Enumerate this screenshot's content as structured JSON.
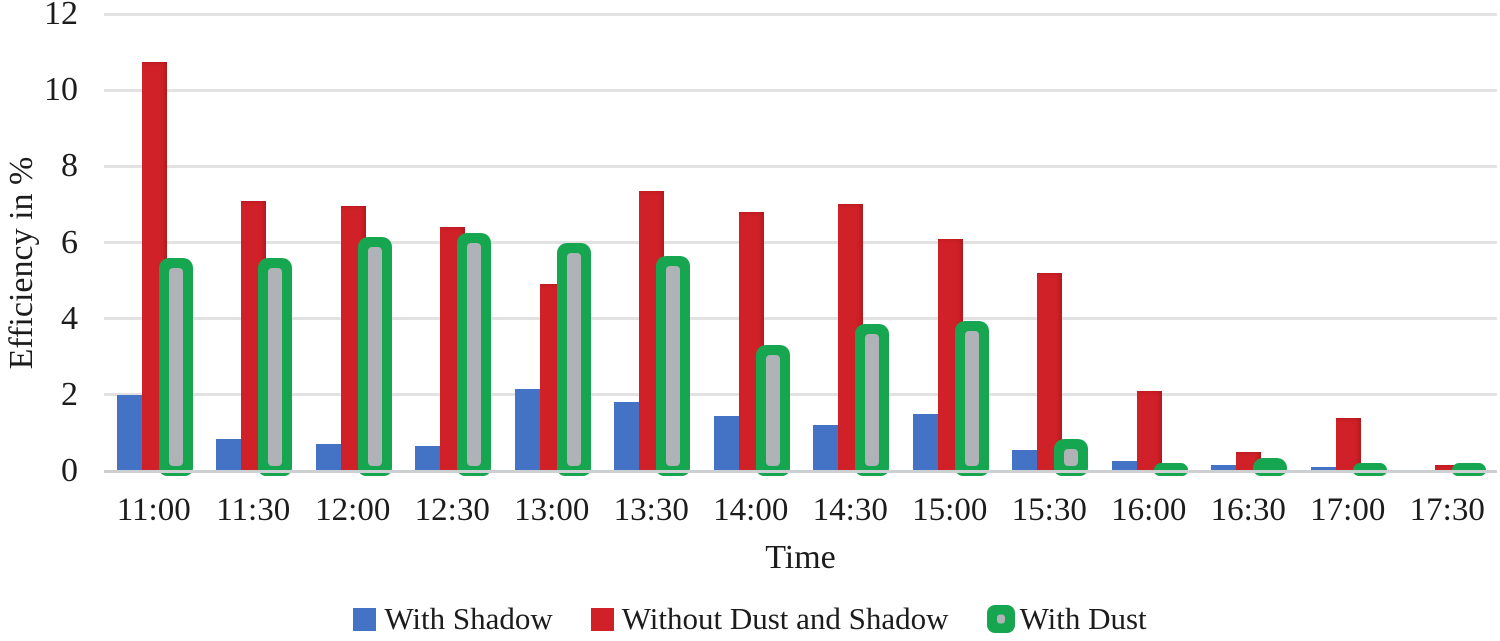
{
  "chart_data": {
    "type": "bar",
    "title": "",
    "xlabel": "Time",
    "ylabel": "Efficiency in %",
    "categories": [
      "11:00",
      "11:30",
      "12:00",
      "12:30",
      "13:00",
      "13:30",
      "14:00",
      "14:30",
      "15:00",
      "15:30",
      "16:00",
      "16:30",
      "17:00",
      "17:30"
    ],
    "series": [
      {
        "name": "With Shadow",
        "color": "#4472C4",
        "marker": "square",
        "values": [
          2.0,
          0.85,
          0.7,
          0.65,
          2.15,
          1.8,
          1.45,
          1.2,
          1.5,
          0.55,
          0.25,
          0.15,
          0.1,
          0
        ]
      },
      {
        "name": "Without Dust and Shadow",
        "color": "#CF2127",
        "marker": "square",
        "values": [
          10.75,
          7.1,
          6.95,
          6.4,
          4.9,
          7.35,
          6.8,
          7.0,
          6.1,
          5.2,
          2.1,
          0.5,
          1.4,
          0.15
        ]
      },
      {
        "name": "With Dust",
        "color": "#17A650",
        "marker": "rounded",
        "inner_color": "#AFB2B6",
        "values": [
          5.6,
          5.6,
          6.15,
          6.25,
          6.0,
          5.65,
          3.3,
          3.85,
          3.95,
          0.85,
          0.2,
          0.35,
          0.2,
          0.2
        ]
      }
    ],
    "ylim": [
      0,
      12
    ],
    "yticks": [
      0,
      2,
      4,
      6,
      8,
      10,
      12
    ],
    "grid": true,
    "legend_position": "bottom"
  },
  "colors": {
    "gridline": "#E2E2E2",
    "axis_line": "#CDD0D3",
    "text": "#1c1c1c"
  }
}
